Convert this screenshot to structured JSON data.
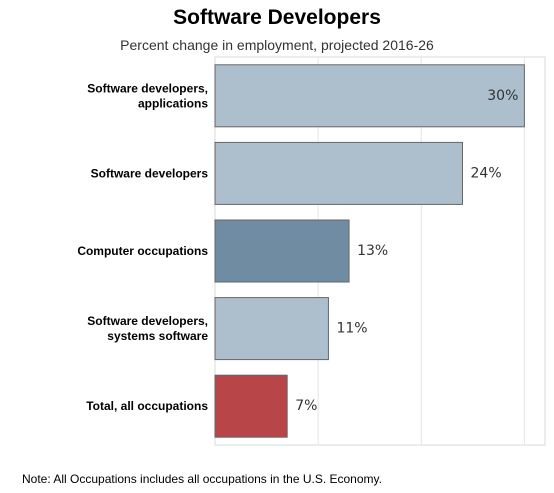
{
  "title": "Software Developers",
  "subtitle": "Percent change in employment, projected 2016-26",
  "note": "Note: All Occupations includes all occupations in the U.S. Economy.",
  "chart_data": {
    "type": "bar",
    "orientation": "horizontal",
    "title": "Software Developers",
    "subtitle": "Percent change in employment, projected 2016-26",
    "categories": [
      [
        "Software developers,",
        "applications"
      ],
      [
        "Software developers"
      ],
      [
        "Computer occupations"
      ],
      [
        "Software developers,",
        "systems software"
      ],
      [
        "Total, all occupations"
      ]
    ],
    "values": [
      30,
      24,
      13,
      11,
      7
    ],
    "value_labels": [
      "30%",
      "24%",
      "13%",
      "11%",
      "7%"
    ],
    "bar_colors": [
      "#adbfcc",
      "#adbfcc",
      "#708ca3",
      "#adbfcc",
      "#b84547"
    ],
    "xlim": [
      0,
      32
    ],
    "grid": true,
    "legend": "none"
  }
}
